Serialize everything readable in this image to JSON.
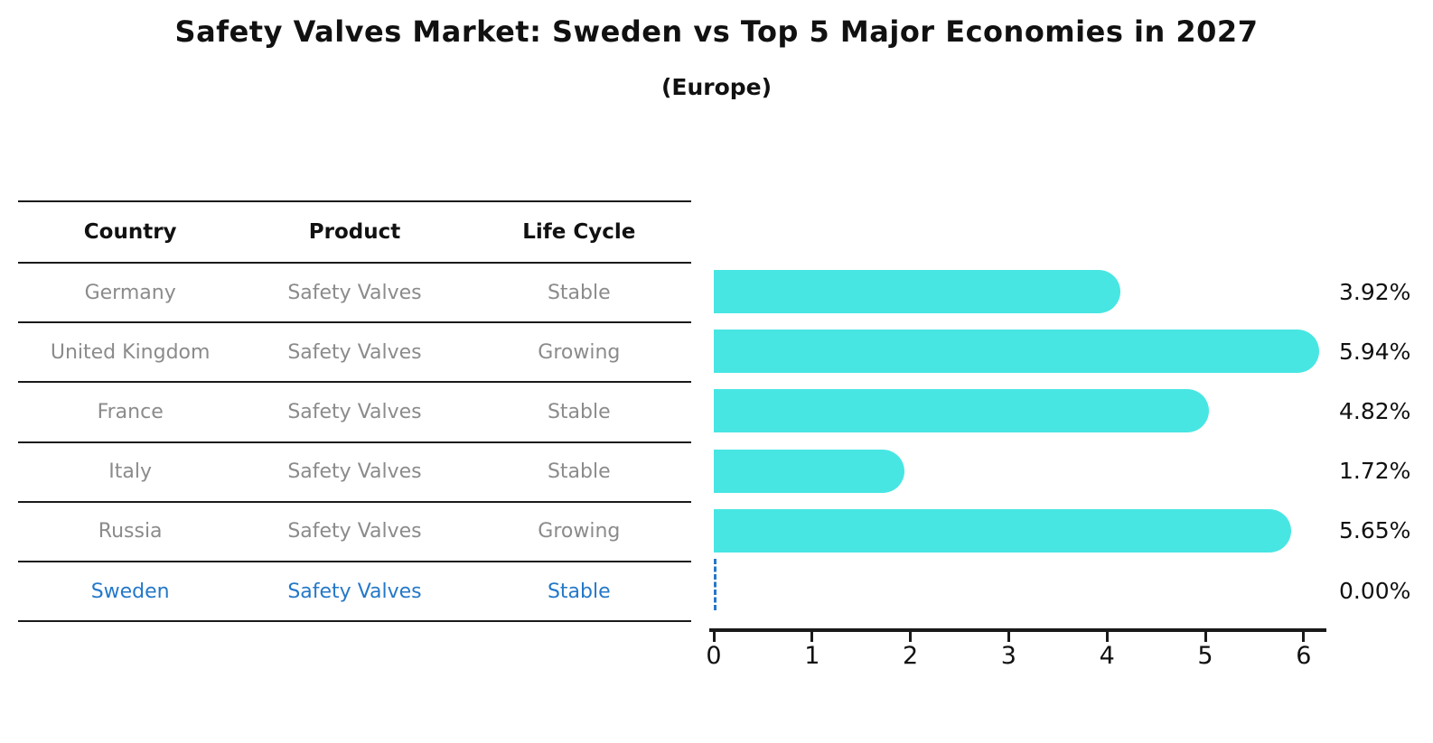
{
  "chart": {
    "title": "Safety Valves Market: Sweden vs Top 5 Major Economies in 2027",
    "subtitle": "(Europe)"
  },
  "table": {
    "headers": [
      "Country",
      "Product",
      "Life Cycle"
    ],
    "rows": [
      {
        "country": "Germany",
        "product": "Safety Valves",
        "life_cycle": "Stable",
        "value_label": "3.92%"
      },
      {
        "country": "United Kingdom",
        "product": "Safety Valves",
        "life_cycle": "Growing",
        "value_label": "5.94%"
      },
      {
        "country": "France",
        "product": "Safety Valves",
        "life_cycle": "Stable",
        "value_label": "4.82%"
      },
      {
        "country": "Italy",
        "product": "Safety Valves",
        "life_cycle": "Stable",
        "value_label": "1.72%"
      },
      {
        "country": "Russia",
        "product": "Safety Valves",
        "life_cycle": "Growing",
        "value_label": "5.65%"
      },
      {
        "country": "Sweden",
        "product": "Safety Valves",
        "life_cycle": "Stable",
        "value_label": "0.00%"
      }
    ]
  },
  "chart_data": {
    "type": "bar",
    "orientation": "horizontal",
    "title": "Safety Valves Market: Sweden vs Top 5 Major Economies in 2027 (Europe)",
    "categories": [
      "Germany",
      "United Kingdom",
      "France",
      "Italy",
      "Russia",
      "Sweden"
    ],
    "values": [
      3.92,
      5.94,
      4.82,
      1.72,
      5.65,
      0.0
    ],
    "value_labels": [
      "3.92%",
      "5.94%",
      "4.82%",
      "1.72%",
      "5.65%",
      "0.00%"
    ],
    "xlabel": "",
    "ylabel": "",
    "xlim": [
      0,
      6.3
    ],
    "x_ticks": [
      0,
      1,
      2,
      3,
      4,
      5,
      6
    ],
    "grid": false,
    "legend": false,
    "highlight_index": 5,
    "highlight_style": "dashed-zero-line"
  },
  "colors": {
    "bar": "#47E6E3",
    "highlight": "#2478C8",
    "table_text": "#8B8B8B",
    "heading_text": "#111111",
    "line": "#1A1A1A",
    "background": "#FFFFFF"
  }
}
